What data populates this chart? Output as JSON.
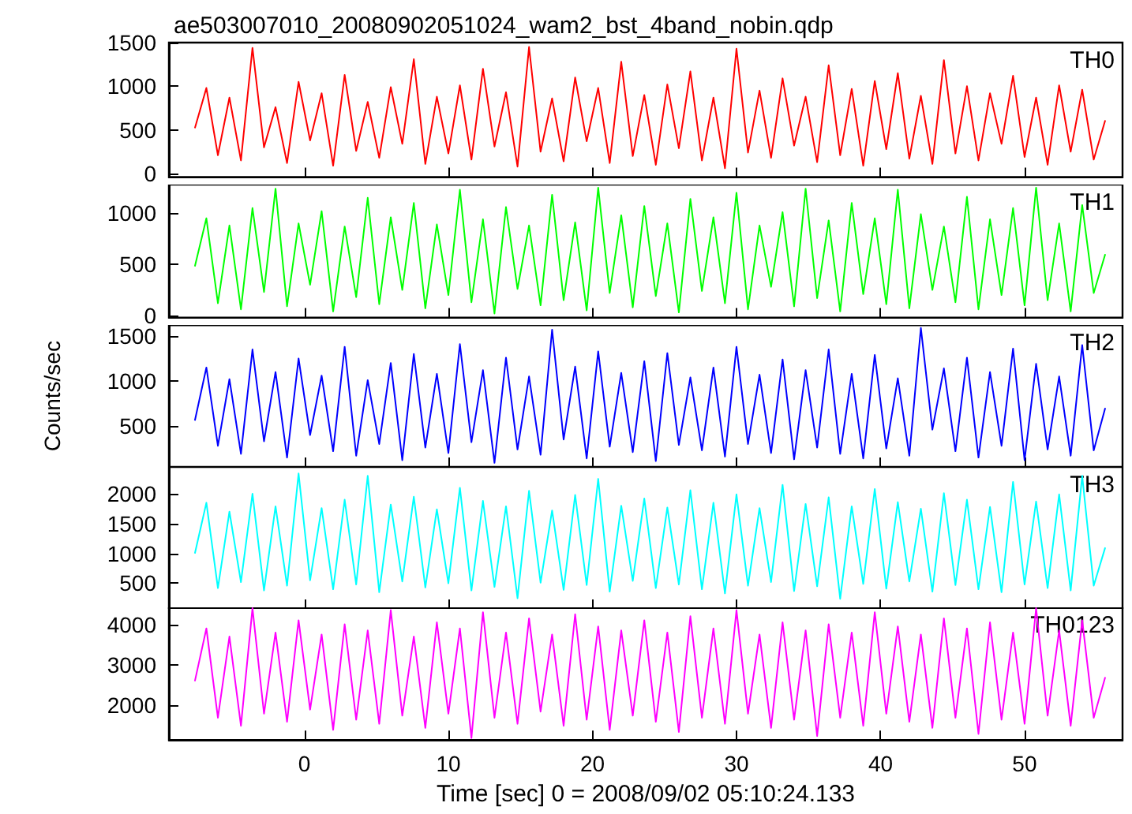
{
  "chart_data": [
    {
      "type": "line",
      "title": "ae503007010_20080902051024_wam2_bst_4band_nobin.qdp",
      "xlim": [
        -9.4,
        56.8
      ],
      "xticks": [
        0,
        10,
        20,
        30,
        40,
        50
      ],
      "ylim": [
        -40,
        1500
      ],
      "yticks": [
        0,
        500,
        1000,
        1500
      ],
      "tick_labels": "y",
      "grid": false,
      "legend": false,
      "marker": "none",
      "x": [
        -7.6,
        -6.8,
        -6.0,
        -5.2,
        -4.4,
        -3.6,
        -2.8,
        -2.0,
        -1.2,
        -0.4,
        0.4,
        1.2,
        2.0,
        2.8,
        3.6,
        4.4,
        5.2,
        6.0,
        6.8,
        7.6,
        8.4,
        9.2,
        10.0,
        10.8,
        11.6,
        12.4,
        13.2,
        14.0,
        14.8,
        15.6,
        16.4,
        17.2,
        18.0,
        18.8,
        19.6,
        20.4,
        21.2,
        22.0,
        22.8,
        23.6,
        24.4,
        25.2,
        26.0,
        26.8,
        27.6,
        28.4,
        29.2,
        30.0,
        30.8,
        31.6,
        32.4,
        33.2,
        34.0,
        34.8,
        35.6,
        36.4,
        37.2,
        38.0,
        38.8,
        39.6,
        40.4,
        41.2,
        42.0,
        42.8,
        43.6,
        44.4,
        45.2,
        46.0,
        46.8,
        47.6,
        48.4,
        49.2,
        50.0,
        50.8,
        51.6,
        52.4,
        53.2,
        54.0,
        54.8,
        55.6
      ],
      "series": [
        {
          "name": "TH0",
          "color": "#ff0000",
          "values": [
            520,
            980,
            210,
            870,
            150,
            1440,
            300,
            760,
            120,
            1050,
            380,
            920,
            90,
            1130,
            260,
            820,
            180,
            990,
            340,
            1310,
            110,
            880,
            230,
            1010,
            160,
            1200,
            310,
            930,
            80,
            1450,
            250,
            860,
            140,
            1100,
            370,
            980,
            120,
            1280,
            200,
            900,
            100,
            1020,
            290,
            1170,
            150,
            870,
            60,
            1430,
            240,
            950,
            180,
            1090,
            320,
            880,
            130,
            1240,
            210,
            970,
            90,
            1060,
            280,
            1150,
            170,
            890,
            110,
            1300,
            230,
            1000,
            150,
            920,
            340,
            1120,
            190,
            870,
            100,
            1010,
            250,
            960,
            160,
            610
          ]
        }
      ]
    },
    {
      "type": "line",
      "xlim": [
        -9.4,
        56.8
      ],
      "xticks": [
        0,
        10,
        20,
        30,
        40,
        50
      ],
      "ylim": [
        -20,
        1280
      ],
      "yticks": [
        0,
        500,
        1000
      ],
      "tick_labels": "y",
      "grid": false,
      "legend": false,
      "marker": "none",
      "x": [
        -7.6,
        -6.8,
        -6.0,
        -5.2,
        -4.4,
        -3.6,
        -2.8,
        -2.0,
        -1.2,
        -0.4,
        0.4,
        1.2,
        2.0,
        2.8,
        3.6,
        4.4,
        5.2,
        6.0,
        6.8,
        7.6,
        8.4,
        9.2,
        10.0,
        10.8,
        11.6,
        12.4,
        13.2,
        14.0,
        14.8,
        15.6,
        16.4,
        17.2,
        18.0,
        18.8,
        19.6,
        20.4,
        21.2,
        22.0,
        22.8,
        23.6,
        24.4,
        25.2,
        26.0,
        26.8,
        27.6,
        28.4,
        29.2,
        30.0,
        30.8,
        31.6,
        32.4,
        33.2,
        34.0,
        34.8,
        35.6,
        36.4,
        37.2,
        38.0,
        38.8,
        39.6,
        40.4,
        41.2,
        42.0,
        42.8,
        43.6,
        44.4,
        45.2,
        46.0,
        46.8,
        47.6,
        48.4,
        49.2,
        50.0,
        50.8,
        51.6,
        52.4,
        53.2,
        54.0,
        54.8,
        55.6
      ],
      "series": [
        {
          "name": "TH1",
          "color": "#00ff00",
          "values": [
            480,
            950,
            120,
            880,
            60,
            1050,
            230,
            1240,
            90,
            900,
            300,
            1020,
            40,
            870,
            180,
            1150,
            110,
            960,
            250,
            1100,
            70,
            890,
            200,
            1230,
            130,
            940,
            20,
            1060,
            260,
            880,
            100,
            1180,
            150,
            910,
            50,
            1250,
            220,
            980,
            80,
            1070,
            190,
            900,
            30,
            1140,
            240,
            960,
            120,
            1200,
            60,
            880,
            280,
            1010,
            90,
            1240,
            170,
            930,
            40,
            1100,
            210,
            950,
            110,
            1230,
            70,
            990,
            250,
            870,
            130,
            1160,
            60,
            940,
            200,
            1050,
            100,
            1250,
            150,
            900,
            40,
            1080,
            220,
            600
          ]
        }
      ]
    },
    {
      "type": "line",
      "ylabel": "Counts/sec",
      "xlim": [
        -9.4,
        56.8
      ],
      "xticks": [
        0,
        10,
        20,
        30,
        40,
        50
      ],
      "ylim": [
        45,
        1620
      ],
      "yticks": [
        500,
        1000,
        1500
      ],
      "tick_labels": "y",
      "grid": false,
      "legend": false,
      "marker": "none",
      "x": [
        -7.6,
        -6.8,
        -6.0,
        -5.2,
        -4.4,
        -3.6,
        -2.8,
        -2.0,
        -1.2,
        -0.4,
        0.4,
        1.2,
        2.0,
        2.8,
        3.6,
        4.4,
        5.2,
        6.0,
        6.8,
        7.6,
        8.4,
        9.2,
        10.0,
        10.8,
        11.6,
        12.4,
        13.2,
        14.0,
        14.8,
        15.6,
        16.4,
        17.2,
        18.0,
        18.8,
        19.6,
        20.4,
        21.2,
        22.0,
        22.8,
        23.6,
        24.4,
        25.2,
        26.0,
        26.8,
        27.6,
        28.4,
        29.2,
        30.0,
        30.8,
        31.6,
        32.4,
        33.2,
        34.0,
        34.8,
        35.6,
        36.4,
        37.2,
        38.0,
        38.8,
        39.6,
        40.4,
        41.2,
        42.0,
        42.8,
        43.6,
        44.4,
        45.2,
        46.0,
        46.8,
        47.6,
        48.4,
        49.2,
        50.0,
        50.8,
        51.6,
        52.4,
        53.2,
        54.0,
        54.8,
        55.6
      ],
      "series": [
        {
          "name": "TH2",
          "color": "#0000ff",
          "values": [
            560,
            1150,
            280,
            1020,
            190,
            1350,
            330,
            1100,
            150,
            1250,
            400,
            1060,
            220,
            1380,
            170,
            1010,
            300,
            1200,
            120,
            1300,
            260,
            1080,
            200,
            1410,
            320,
            1120,
            90,
            1260,
            240,
            1050,
            180,
            1570,
            350,
            1160,
            140,
            1330,
            270,
            1090,
            210,
            1220,
            110,
            1310,
            290,
            1040,
            230,
            1150,
            160,
            1380,
            300,
            1070,
            200,
            1240,
            130,
            1120,
            260,
            1350,
            190,
            1080,
            140,
            1290,
            250,
            1030,
            170,
            1590,
            460,
            1140,
            220,
            1260,
            150,
            1100,
            280,
            1360,
            120,
            1190,
            240,
            1050,
            170,
            1400,
            230,
            700
          ]
        }
      ]
    },
    {
      "type": "line",
      "xlim": [
        -9.4,
        56.8
      ],
      "xticks": [
        0,
        10,
        20,
        30,
        40,
        50
      ],
      "ylim": [
        70,
        2450
      ],
      "yticks": [
        500,
        1000,
        1500,
        2000
      ],
      "tick_labels": "y",
      "grid": false,
      "legend": false,
      "marker": "none",
      "x": [
        -7.6,
        -6.8,
        -6.0,
        -5.2,
        -4.4,
        -3.6,
        -2.8,
        -2.0,
        -1.2,
        -0.4,
        0.4,
        1.2,
        2.0,
        2.8,
        3.6,
        4.4,
        5.2,
        6.0,
        6.8,
        7.6,
        8.4,
        9.2,
        10.0,
        10.8,
        11.6,
        12.4,
        13.2,
        14.0,
        14.8,
        15.6,
        16.4,
        17.2,
        18.0,
        18.8,
        19.6,
        20.4,
        21.2,
        22.0,
        22.8,
        23.6,
        24.4,
        25.2,
        26.0,
        26.8,
        27.6,
        28.4,
        29.2,
        30.0,
        30.8,
        31.6,
        32.4,
        33.2,
        34.0,
        34.8,
        35.6,
        36.4,
        37.2,
        38.0,
        38.8,
        39.6,
        40.4,
        41.2,
        42.0,
        42.8,
        43.6,
        44.4,
        45.2,
        46.0,
        46.8,
        47.6,
        48.4,
        49.2,
        50.0,
        50.8,
        51.6,
        52.4,
        53.2,
        54.0,
        54.8,
        55.6
      ],
      "series": [
        {
          "name": "TH3",
          "color": "#00ffff",
          "values": [
            1000,
            1850,
            420,
            1700,
            520,
            2000,
            380,
            1790,
            460,
            2340,
            550,
            1760,
            400,
            1900,
            480,
            2300,
            350,
            1820,
            530,
            1950,
            430,
            1740,
            500,
            2100,
            380,
            1880,
            440,
            1790,
            250,
            2050,
            510,
            1720,
            390,
            1980,
            470,
            2250,
            360,
            1800,
            540,
            1920,
            420,
            1770,
            480,
            2060,
            400,
            1850,
            330,
            1990,
            460,
            1760,
            520,
            2150,
            370,
            1830,
            450,
            1940,
            240,
            1790,
            490,
            2080,
            410,
            1860,
            530,
            1750,
            360,
            2010,
            470,
            1900,
            400,
            1780,
            350,
            2200,
            480,
            1870,
            420,
            1990,
            380,
            2300,
            460,
            1100
          ]
        }
      ]
    },
    {
      "type": "line",
      "xlabel": "Time [sec] 0 = 2008/09/02 05:10:24.133",
      "xlim": [
        -9.4,
        56.8
      ],
      "xticks": [
        0,
        10,
        20,
        30,
        40,
        50
      ],
      "ylim": [
        1150,
        4420
      ],
      "yticks": [
        2000,
        3000,
        4000
      ],
      "grid": false,
      "legend": false,
      "marker": "none",
      "x": [
        -7.6,
        -6.8,
        -6.0,
        -5.2,
        -4.4,
        -3.6,
        -2.8,
        -2.0,
        -1.2,
        -0.4,
        0.4,
        1.2,
        2.0,
        2.8,
        3.6,
        4.4,
        5.2,
        6.0,
        6.8,
        7.6,
        8.4,
        9.2,
        10.0,
        10.8,
        11.6,
        12.4,
        13.2,
        14.0,
        14.8,
        15.6,
        16.4,
        17.2,
        18.0,
        18.8,
        19.6,
        20.4,
        21.2,
        22.0,
        22.8,
        23.6,
        24.4,
        25.2,
        26.0,
        26.8,
        27.6,
        28.4,
        29.2,
        30.0,
        30.8,
        31.6,
        32.4,
        33.2,
        34.0,
        34.8,
        35.6,
        36.4,
        37.2,
        38.0,
        38.8,
        39.6,
        40.4,
        41.2,
        42.0,
        42.8,
        43.6,
        44.4,
        45.2,
        46.0,
        46.8,
        47.6,
        48.4,
        49.2,
        50.0,
        50.8,
        51.6,
        52.4,
        53.2,
        54.0,
        54.8,
        55.6
      ],
      "series": [
        {
          "name": "TH0123",
          "color": "#ff00ff",
          "values": [
            2600,
            3900,
            1700,
            3700,
            1500,
            4400,
            1800,
            3800,
            1600,
            4100,
            1900,
            3750,
            1400,
            4000,
            1650,
            3850,
            1550,
            4350,
            1750,
            3700,
            1450,
            4050,
            1800,
            3900,
            1200,
            4300,
            1700,
            3800,
            1550,
            4150,
            1850,
            3750,
            1500,
            4250,
            1650,
            3950,
            1400,
            3850,
            1750,
            4100,
            1600,
            3800,
            1350,
            4200,
            1700,
            3900,
            1550,
            4350,
            1800,
            3750,
            1450,
            4050,
            1650,
            3850,
            1250,
            4000,
            1700,
            3800,
            1500,
            4300,
            1800,
            3950,
            1600,
            3750,
            1450,
            4150,
            1700,
            3900,
            1300,
            4050,
            1650,
            3800,
            1550,
            4400,
            1750,
            3850,
            1500,
            4100,
            1700,
            2700
          ]
        }
      ]
    }
  ]
}
